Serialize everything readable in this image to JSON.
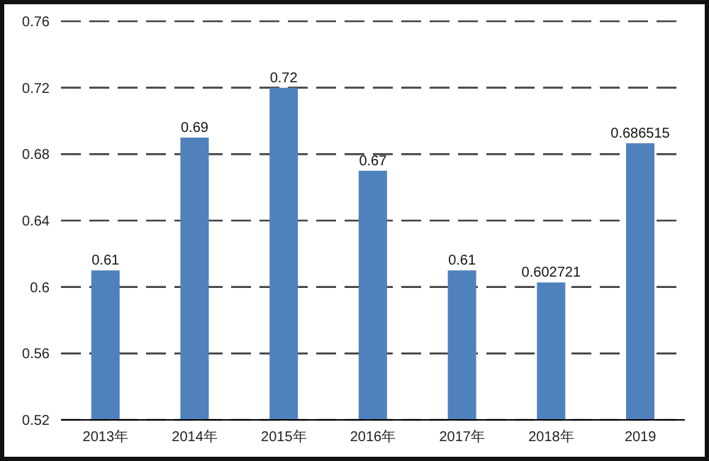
{
  "chart_data": {
    "type": "bar",
    "categories": [
      "2013年",
      "2014年",
      "2015年",
      "2016年",
      "2017年",
      "2018年",
      "2019"
    ],
    "values": [
      0.61,
      0.69,
      0.72,
      0.67,
      0.61,
      0.602721,
      0.686515
    ],
    "color": "#4f81bd",
    "ylim": [
      0.52,
      0.76
    ],
    "yticks": [
      0.52,
      0.56,
      0.6,
      0.64,
      0.68,
      0.72,
      0.76
    ],
    "grid": "y",
    "data_labels": true
  }
}
